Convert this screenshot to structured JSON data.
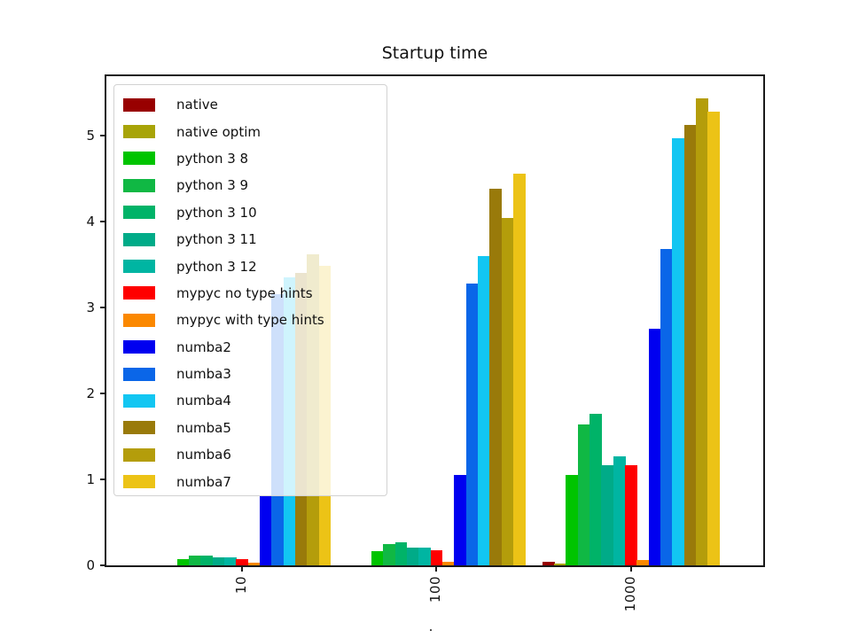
{
  "chart_data": {
    "type": "bar",
    "title": "Startup time",
    "categories": [
      "10",
      "100",
      "1000"
    ],
    "series": [
      {
        "name": "native",
        "color": "#980000",
        "values": [
          0,
          0,
          0.04
        ]
      },
      {
        "name": "native optim",
        "color": "#a8a408",
        "values": [
          0,
          0,
          0.02
        ]
      },
      {
        "name": "python 3 8",
        "color": "#00c400",
        "values": [
          0.07,
          0.17,
          1.05
        ]
      },
      {
        "name": "python 3 9",
        "color": "#10b844",
        "values": [
          0.11,
          0.25,
          1.64
        ]
      },
      {
        "name": "python 3 10",
        "color": "#00b368",
        "values": [
          0.11,
          0.27,
          1.76
        ]
      },
      {
        "name": "python 3 11",
        "color": "#00ab88",
        "values": [
          0.09,
          0.21,
          1.16
        ]
      },
      {
        "name": "python 3 12",
        "color": "#00b5a2",
        "values": [
          0.09,
          0.21,
          1.27
        ]
      },
      {
        "name": "mypyc no type hints",
        "color": "#ff0000",
        "values": [
          0.07,
          0.18,
          1.16
        ]
      },
      {
        "name": "mypyc with type hints",
        "color": "#fb8800",
        "values": [
          0.03,
          0.04,
          0.06
        ]
      },
      {
        "name": "numba2",
        "color": "#0000f0",
        "values": [
          0.8,
          1.05,
          2.75
        ]
      },
      {
        "name": "numba3",
        "color": "#0a66e8",
        "values": [
          3.15,
          3.28,
          3.68
        ]
      },
      {
        "name": "numba4",
        "color": "#12c6f2",
        "values": [
          3.35,
          3.6,
          4.97
        ]
      },
      {
        "name": "numba5",
        "color": "#997a0a",
        "values": [
          3.4,
          4.38,
          5.12
        ]
      },
      {
        "name": "numba6",
        "color": "#b49d0b",
        "values": [
          3.62,
          4.04,
          5.43
        ]
      },
      {
        "name": "numba7",
        "color": "#ecc316",
        "values": [
          3.48,
          4.56,
          5.28
        ]
      }
    ],
    "y_ticks": [
      0,
      1,
      2,
      3,
      4,
      5
    ],
    "ylim": [
      0,
      5.7
    ],
    "xlabel": "",
    "ylabel": "",
    "grid": false,
    "legend_position": "upper left",
    "x_tick_rotation": 90
  },
  "xlabel_fragment": "."
}
